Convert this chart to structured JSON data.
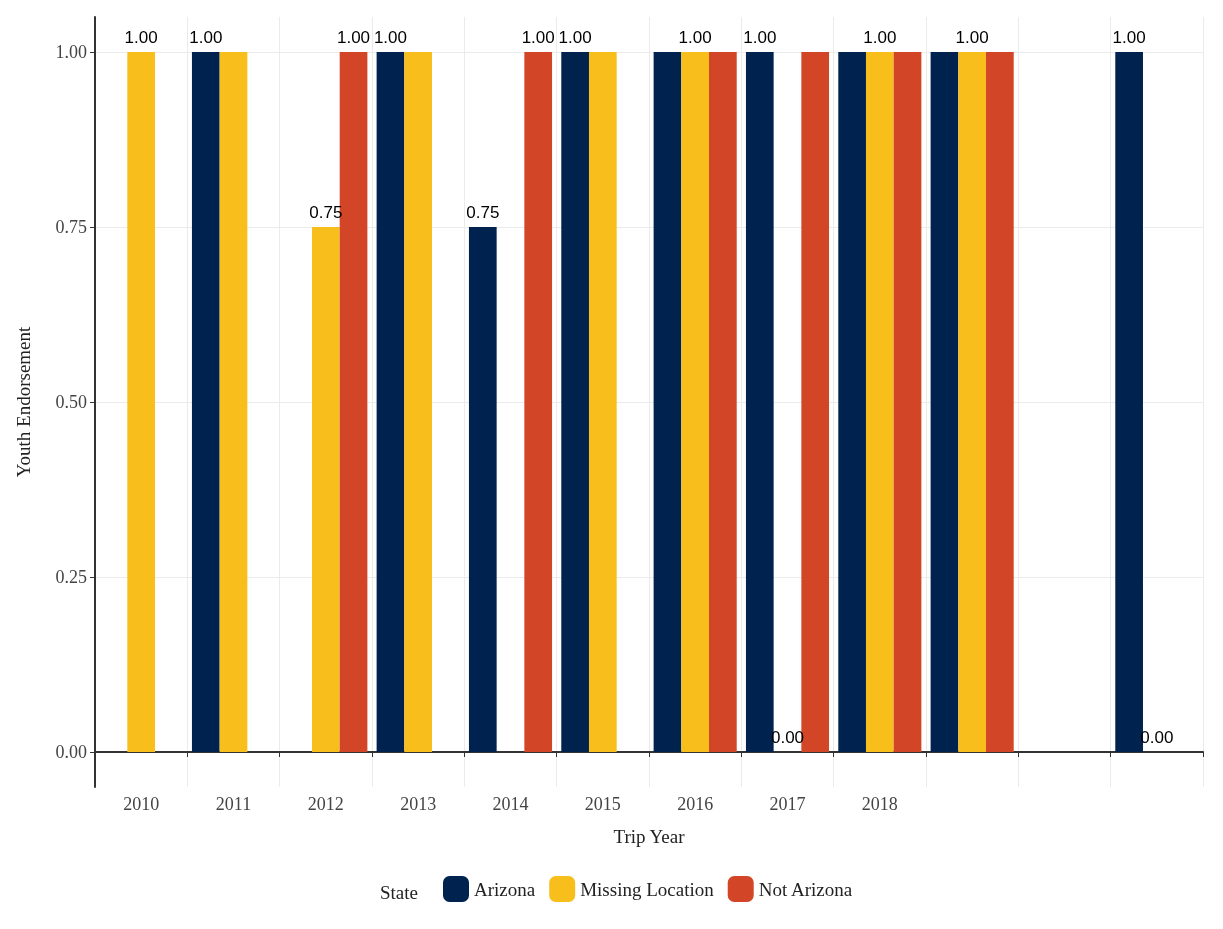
{
  "chart_data": {
    "type": "bar",
    "xlabel": "Trip Year",
    "ylabel": "Youth Endorsement",
    "legend_title": "State",
    "categories": [
      "2010",
      "2011",
      "2012",
      "2013",
      "2014",
      "2015",
      "2016",
      "2017",
      "2018",
      null,
      null,
      null
    ],
    "series": [
      {
        "name": "Arizona",
        "color": "#00224f",
        "values": [
          null,
          1,
          null,
          1,
          0.75,
          1,
          1,
          1,
          1,
          1,
          null,
          1
        ],
        "value_labels": [
          null,
          "1.00",
          null,
          "1.00",
          "0.75",
          "1.00",
          null,
          "1.00",
          null,
          null,
          null,
          "1.00"
        ]
      },
      {
        "name": "Missing Location",
        "color": "#f8bf1c",
        "values": [
          1,
          1,
          0.75,
          1,
          null,
          1,
          1,
          0,
          1,
          1,
          null,
          0
        ],
        "value_labels": [
          "1.00",
          null,
          "0.75",
          null,
          null,
          null,
          "1.00",
          "0.00",
          "1.00",
          "1.00",
          null,
          "0.00"
        ]
      },
      {
        "name": "Not Arizona",
        "color": "#d24527",
        "values": [
          null,
          null,
          1,
          null,
          1,
          null,
          1,
          1,
          1,
          1,
          null,
          null
        ],
        "value_labels": [
          null,
          null,
          "1.00",
          null,
          "1.00",
          null,
          null,
          null,
          null,
          null,
          null,
          null
        ]
      }
    ],
    "ylim": [
      -0.05,
      1.05
    ],
    "yticks": [
      {
        "value": 0,
        "label": "0.00"
      },
      {
        "value": 0.25,
        "label": "0.25"
      },
      {
        "value": 0.5,
        "label": "0.50"
      },
      {
        "value": 0.75,
        "label": "0.75"
      },
      {
        "value": 1,
        "label": "1.00"
      }
    ],
    "grid": true,
    "legend": "bottom"
  }
}
